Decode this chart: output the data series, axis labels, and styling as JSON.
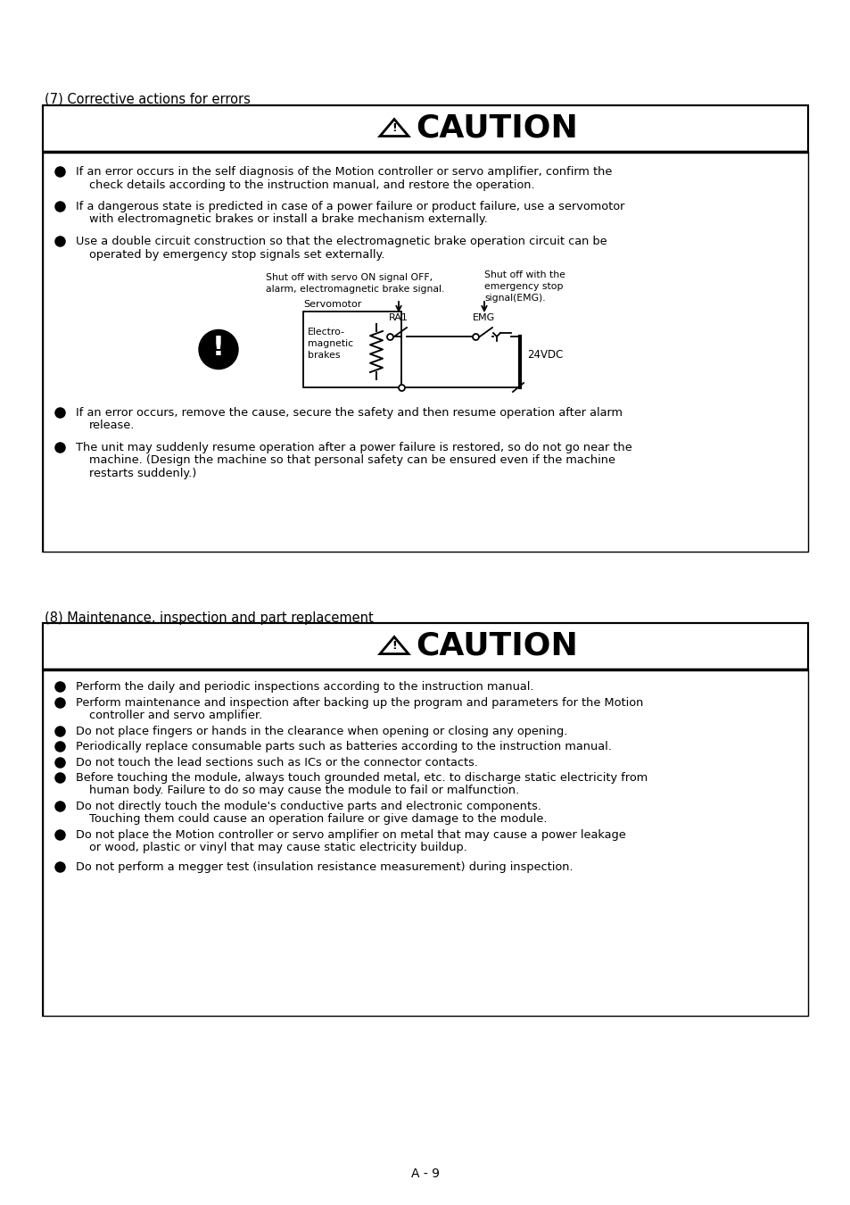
{
  "bg_color": "#ffffff",
  "page_number": "A - 9",
  "section1_title": "(7) Corrective actions for errors",
  "section1_caution": "CAUTION",
  "section2_title": "(8) Maintenance, inspection and part replacement",
  "section2_caution": "CAUTION",
  "diagram_label_left": "Shut off with servo ON signal OFF,\nalarm, electromagnetic brake signal.",
  "diagram_label_right": "Shut off with the\nemergency stop\nsignal(EMG).",
  "diagram_servomotor": "Servomotor",
  "diagram_ra1": "RA1",
  "diagram_emg": "EMG",
  "diagram_electro": "Electro-\nmagnetic\nbrakes",
  "diagram_24vdc": "24VDC"
}
